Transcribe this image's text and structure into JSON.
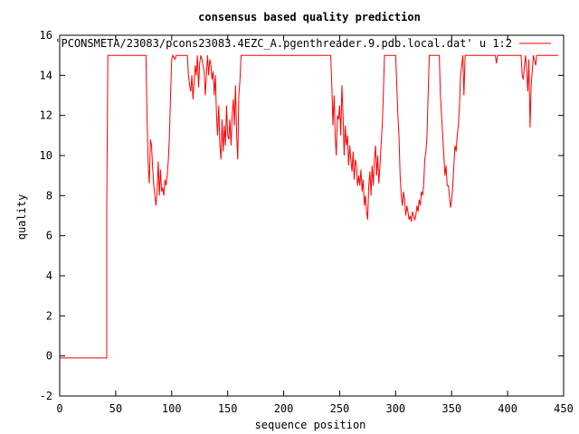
{
  "chart_data": {
    "type": "line",
    "title": "consensus based quality prediction",
    "xlabel": "sequence position",
    "ylabel": "quality",
    "xlim": [
      0,
      450
    ],
    "ylim": [
      -2,
      16
    ],
    "xticks": [
      0,
      50,
      100,
      150,
      200,
      250,
      300,
      350,
      400,
      450
    ],
    "yticks": [
      -2,
      0,
      2,
      4,
      6,
      8,
      10,
      12,
      14,
      16
    ],
    "grid": false,
    "legend_position": "top-right",
    "series": [
      {
        "name": "'PCONSMETA/23083/pcons23083.4EZC_A.pgenthreader.9.pdb.local.dat' u 1:2",
        "color": "#ff0000",
        "points": [
          [
            0,
            -0.1
          ],
          [
            42,
            -0.1
          ],
          [
            42,
            7.5
          ],
          [
            43,
            15
          ],
          [
            77,
            15
          ],
          [
            78,
            12
          ],
          [
            79,
            9.6
          ],
          [
            80,
            8.6
          ],
          [
            81,
            10.8
          ],
          [
            82,
            10.5
          ],
          [
            83,
            9.4
          ],
          [
            84,
            8.5
          ],
          [
            85,
            8.0
          ],
          [
            86,
            7.5
          ],
          [
            87,
            8.2
          ],
          [
            88,
            9.7
          ],
          [
            89,
            8.0
          ],
          [
            90,
            9.3
          ],
          [
            91,
            8.2
          ],
          [
            92,
            8.4
          ],
          [
            93,
            8.0
          ],
          [
            94,
            8.8
          ],
          [
            95,
            8.5
          ],
          [
            96,
            9.0
          ],
          [
            97,
            9.8
          ],
          [
            98,
            11.0
          ],
          [
            99,
            13.0
          ],
          [
            100,
            14.8
          ],
          [
            101,
            15.0
          ],
          [
            103,
            14.8
          ],
          [
            104,
            15.0
          ],
          [
            114,
            15.0
          ],
          [
            115,
            14.0
          ],
          [
            116,
            13.5
          ],
          [
            117,
            13.2
          ],
          [
            118,
            14.0
          ],
          [
            119,
            12.8
          ],
          [
            120,
            13.6
          ],
          [
            121,
            14.5
          ],
          [
            122,
            14.0
          ],
          [
            123,
            15.0
          ],
          [
            124,
            13.4
          ],
          [
            125,
            14.6
          ],
          [
            126,
            15.0
          ],
          [
            127,
            14.8
          ],
          [
            128,
            14.5
          ],
          [
            129,
            14.2
          ],
          [
            130,
            13.0
          ],
          [
            131,
            14.0
          ],
          [
            132,
            15.0
          ],
          [
            133,
            14.0
          ],
          [
            134,
            14.8
          ],
          [
            135,
            14.5
          ],
          [
            136,
            13.8
          ],
          [
            137,
            14.2
          ],
          [
            138,
            13.0
          ],
          [
            139,
            14.0
          ],
          [
            140,
            12.0
          ],
          [
            141,
            11.0
          ],
          [
            142,
            12.5
          ],
          [
            143,
            10.5
          ],
          [
            144,
            9.8
          ],
          [
            145,
            11.8
          ],
          [
            146,
            10.2
          ],
          [
            147,
            11.5
          ],
          [
            148,
            10.5
          ],
          [
            149,
            12.5
          ],
          [
            150,
            11.0
          ],
          [
            151,
            10.8
          ],
          [
            152,
            11.8
          ],
          [
            153,
            10.5
          ],
          [
            154,
            12.0
          ],
          [
            155,
            12.8
          ],
          [
            156,
            11.5
          ],
          [
            157,
            13.5
          ],
          [
            158,
            11.0
          ],
          [
            159,
            9.8
          ],
          [
            160,
            13.0
          ],
          [
            161,
            13.8
          ],
          [
            162,
            15.0
          ],
          [
            242,
            15.0
          ],
          [
            243,
            13.5
          ],
          [
            244,
            11.5
          ],
          [
            245,
            13.0
          ],
          [
            246,
            11.0
          ],
          [
            247,
            10.0
          ],
          [
            248,
            12.0
          ],
          [
            249,
            11.8
          ],
          [
            250,
            12.5
          ],
          [
            251,
            11.0
          ],
          [
            252,
            13.5
          ],
          [
            253,
            12.0
          ],
          [
            254,
            10.0
          ],
          [
            255,
            11.5
          ],
          [
            256,
            10.5
          ],
          [
            257,
            11.0
          ],
          [
            258,
            9.5
          ],
          [
            259,
            10.5
          ],
          [
            260,
            9.8
          ],
          [
            261,
            9.2
          ],
          [
            262,
            10.2
          ],
          [
            263,
            8.8
          ],
          [
            264,
            9.8
          ],
          [
            265,
            9.5
          ],
          [
            266,
            8.5
          ],
          [
            267,
            9.0
          ],
          [
            268,
            8.5
          ],
          [
            269,
            9.3
          ],
          [
            270,
            8.2
          ],
          [
            271,
            8.8
          ],
          [
            272,
            7.5
          ],
          [
            273,
            8.0
          ],
          [
            274,
            7.2
          ],
          [
            275,
            6.8
          ],
          [
            276,
            8.5
          ],
          [
            277,
            9.2
          ],
          [
            278,
            8.0
          ],
          [
            279,
            9.5
          ],
          [
            280,
            8.5
          ],
          [
            281,
            9.8
          ],
          [
            282,
            10.5
          ],
          [
            283,
            9.0
          ],
          [
            284,
            10.0
          ],
          [
            285,
            8.6
          ],
          [
            286,
            9.5
          ],
          [
            287,
            10.5
          ],
          [
            288,
            11.5
          ],
          [
            289,
            13.0
          ],
          [
            290,
            15.0
          ],
          [
            300,
            15.0
          ],
          [
            301,
            13.5
          ],
          [
            302,
            12.0
          ],
          [
            303,
            11.0
          ],
          [
            304,
            9.0
          ],
          [
            305,
            8.0
          ],
          [
            306,
            7.5
          ],
          [
            307,
            8.2
          ],
          [
            308,
            7.8
          ],
          [
            309,
            7.0
          ],
          [
            310,
            7.5
          ],
          [
            311,
            7.2
          ],
          [
            312,
            6.8
          ],
          [
            313,
            7.0
          ],
          [
            314,
            6.7
          ],
          [
            315,
            7.2
          ],
          [
            316,
            7.0
          ],
          [
            317,
            6.8
          ],
          [
            318,
            7.0
          ],
          [
            319,
            7.5
          ],
          [
            320,
            7.2
          ],
          [
            321,
            7.8
          ],
          [
            322,
            7.5
          ],
          [
            323,
            8.2
          ],
          [
            324,
            8.0
          ],
          [
            325,
            8.5
          ],
          [
            326,
            9.8
          ],
          [
            327,
            10.2
          ],
          [
            328,
            11.0
          ],
          [
            329,
            13.0
          ],
          [
            330,
            15.0
          ],
          [
            339,
            15.0
          ],
          [
            340,
            13.0
          ],
          [
            341,
            12.0
          ],
          [
            342,
            11.0
          ],
          [
            343,
            10.0
          ],
          [
            344,
            9.0
          ],
          [
            345,
            9.5
          ],
          [
            346,
            8.5
          ],
          [
            347,
            8.5
          ],
          [
            348,
            8.0
          ],
          [
            349,
            7.4
          ],
          [
            350,
            7.8
          ],
          [
            351,
            8.5
          ],
          [
            352,
            9.5
          ],
          [
            353,
            10.5
          ],
          [
            354,
            10.2
          ],
          [
            355,
            11.0
          ],
          [
            356,
            11.5
          ],
          [
            357,
            12.5
          ],
          [
            358,
            14.0
          ],
          [
            359,
            14.5
          ],
          [
            360,
            15.0
          ],
          [
            361,
            13.0
          ],
          [
            362,
            15.0
          ],
          [
            389,
            15.0
          ],
          [
            390,
            14.6
          ],
          [
            391,
            15.0
          ],
          [
            412,
            15.0
          ],
          [
            413,
            14.0
          ],
          [
            414,
            13.8
          ],
          [
            415,
            14.5
          ],
          [
            416,
            15.0
          ],
          [
            417,
            14.2
          ],
          [
            418,
            13.2
          ],
          [
            419,
            14.8
          ],
          [
            420,
            11.4
          ],
          [
            421,
            13.5
          ],
          [
            422,
            14.2
          ],
          [
            423,
            15.0
          ],
          [
            425,
            14.5
          ],
          [
            426,
            15.0
          ],
          [
            445,
            15.0
          ]
        ]
      }
    ]
  }
}
